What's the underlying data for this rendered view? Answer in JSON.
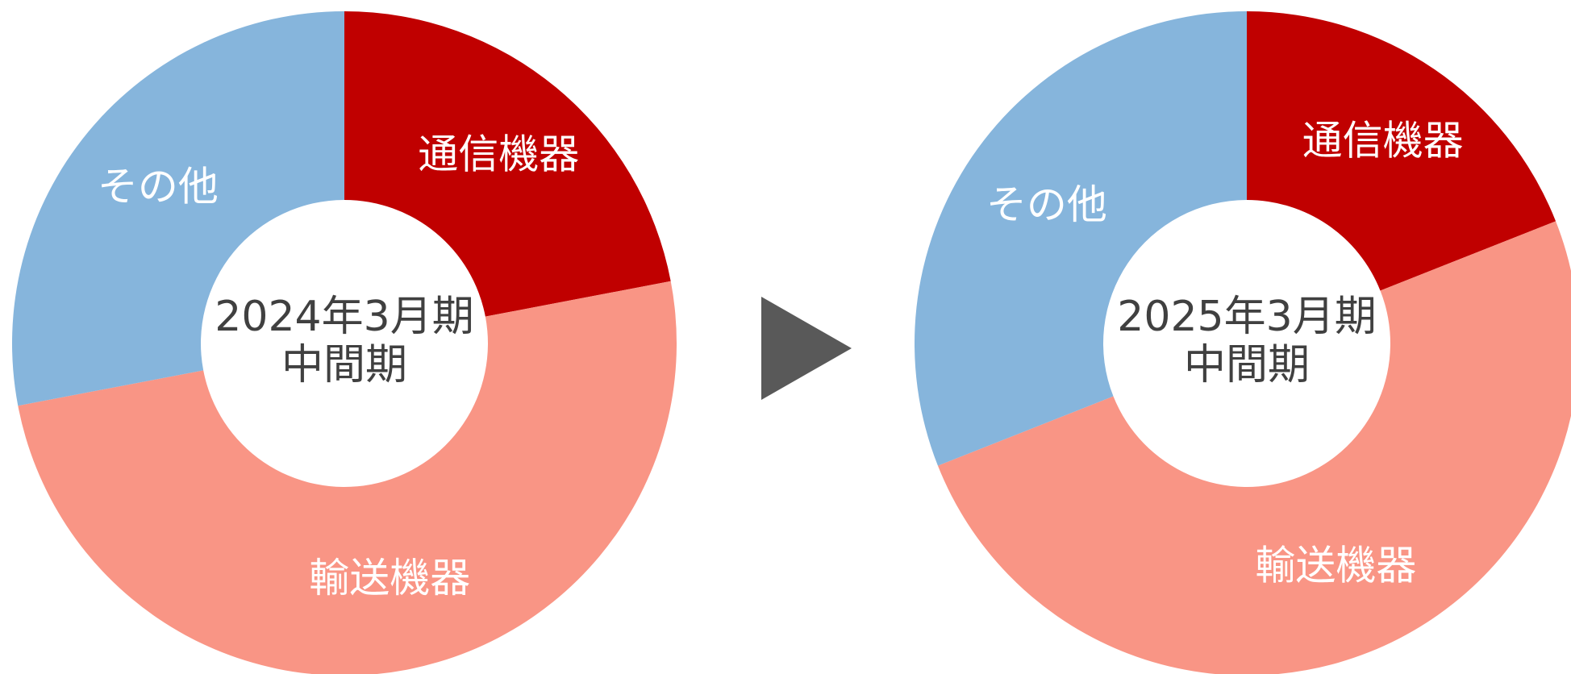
{
  "chart_data": [
    {
      "type": "donut",
      "center_label": [
        "2024年3月期",
        "中間期"
      ],
      "categories": [
        "通信機器",
        "輸送機器",
        "その他"
      ],
      "values": [
        22,
        50,
        28
      ],
      "colors": [
        "#c00000",
        "#f99585",
        "#86b5dc"
      ]
    },
    {
      "type": "donut",
      "center_label": [
        "2025年3月期",
        "中間期"
      ],
      "categories": [
        "通信機器",
        "輸送機器",
        "その他"
      ],
      "values": [
        19,
        50,
        31
      ],
      "colors": [
        "#c00000",
        "#f99585",
        "#86b5dc"
      ]
    }
  ]
}
